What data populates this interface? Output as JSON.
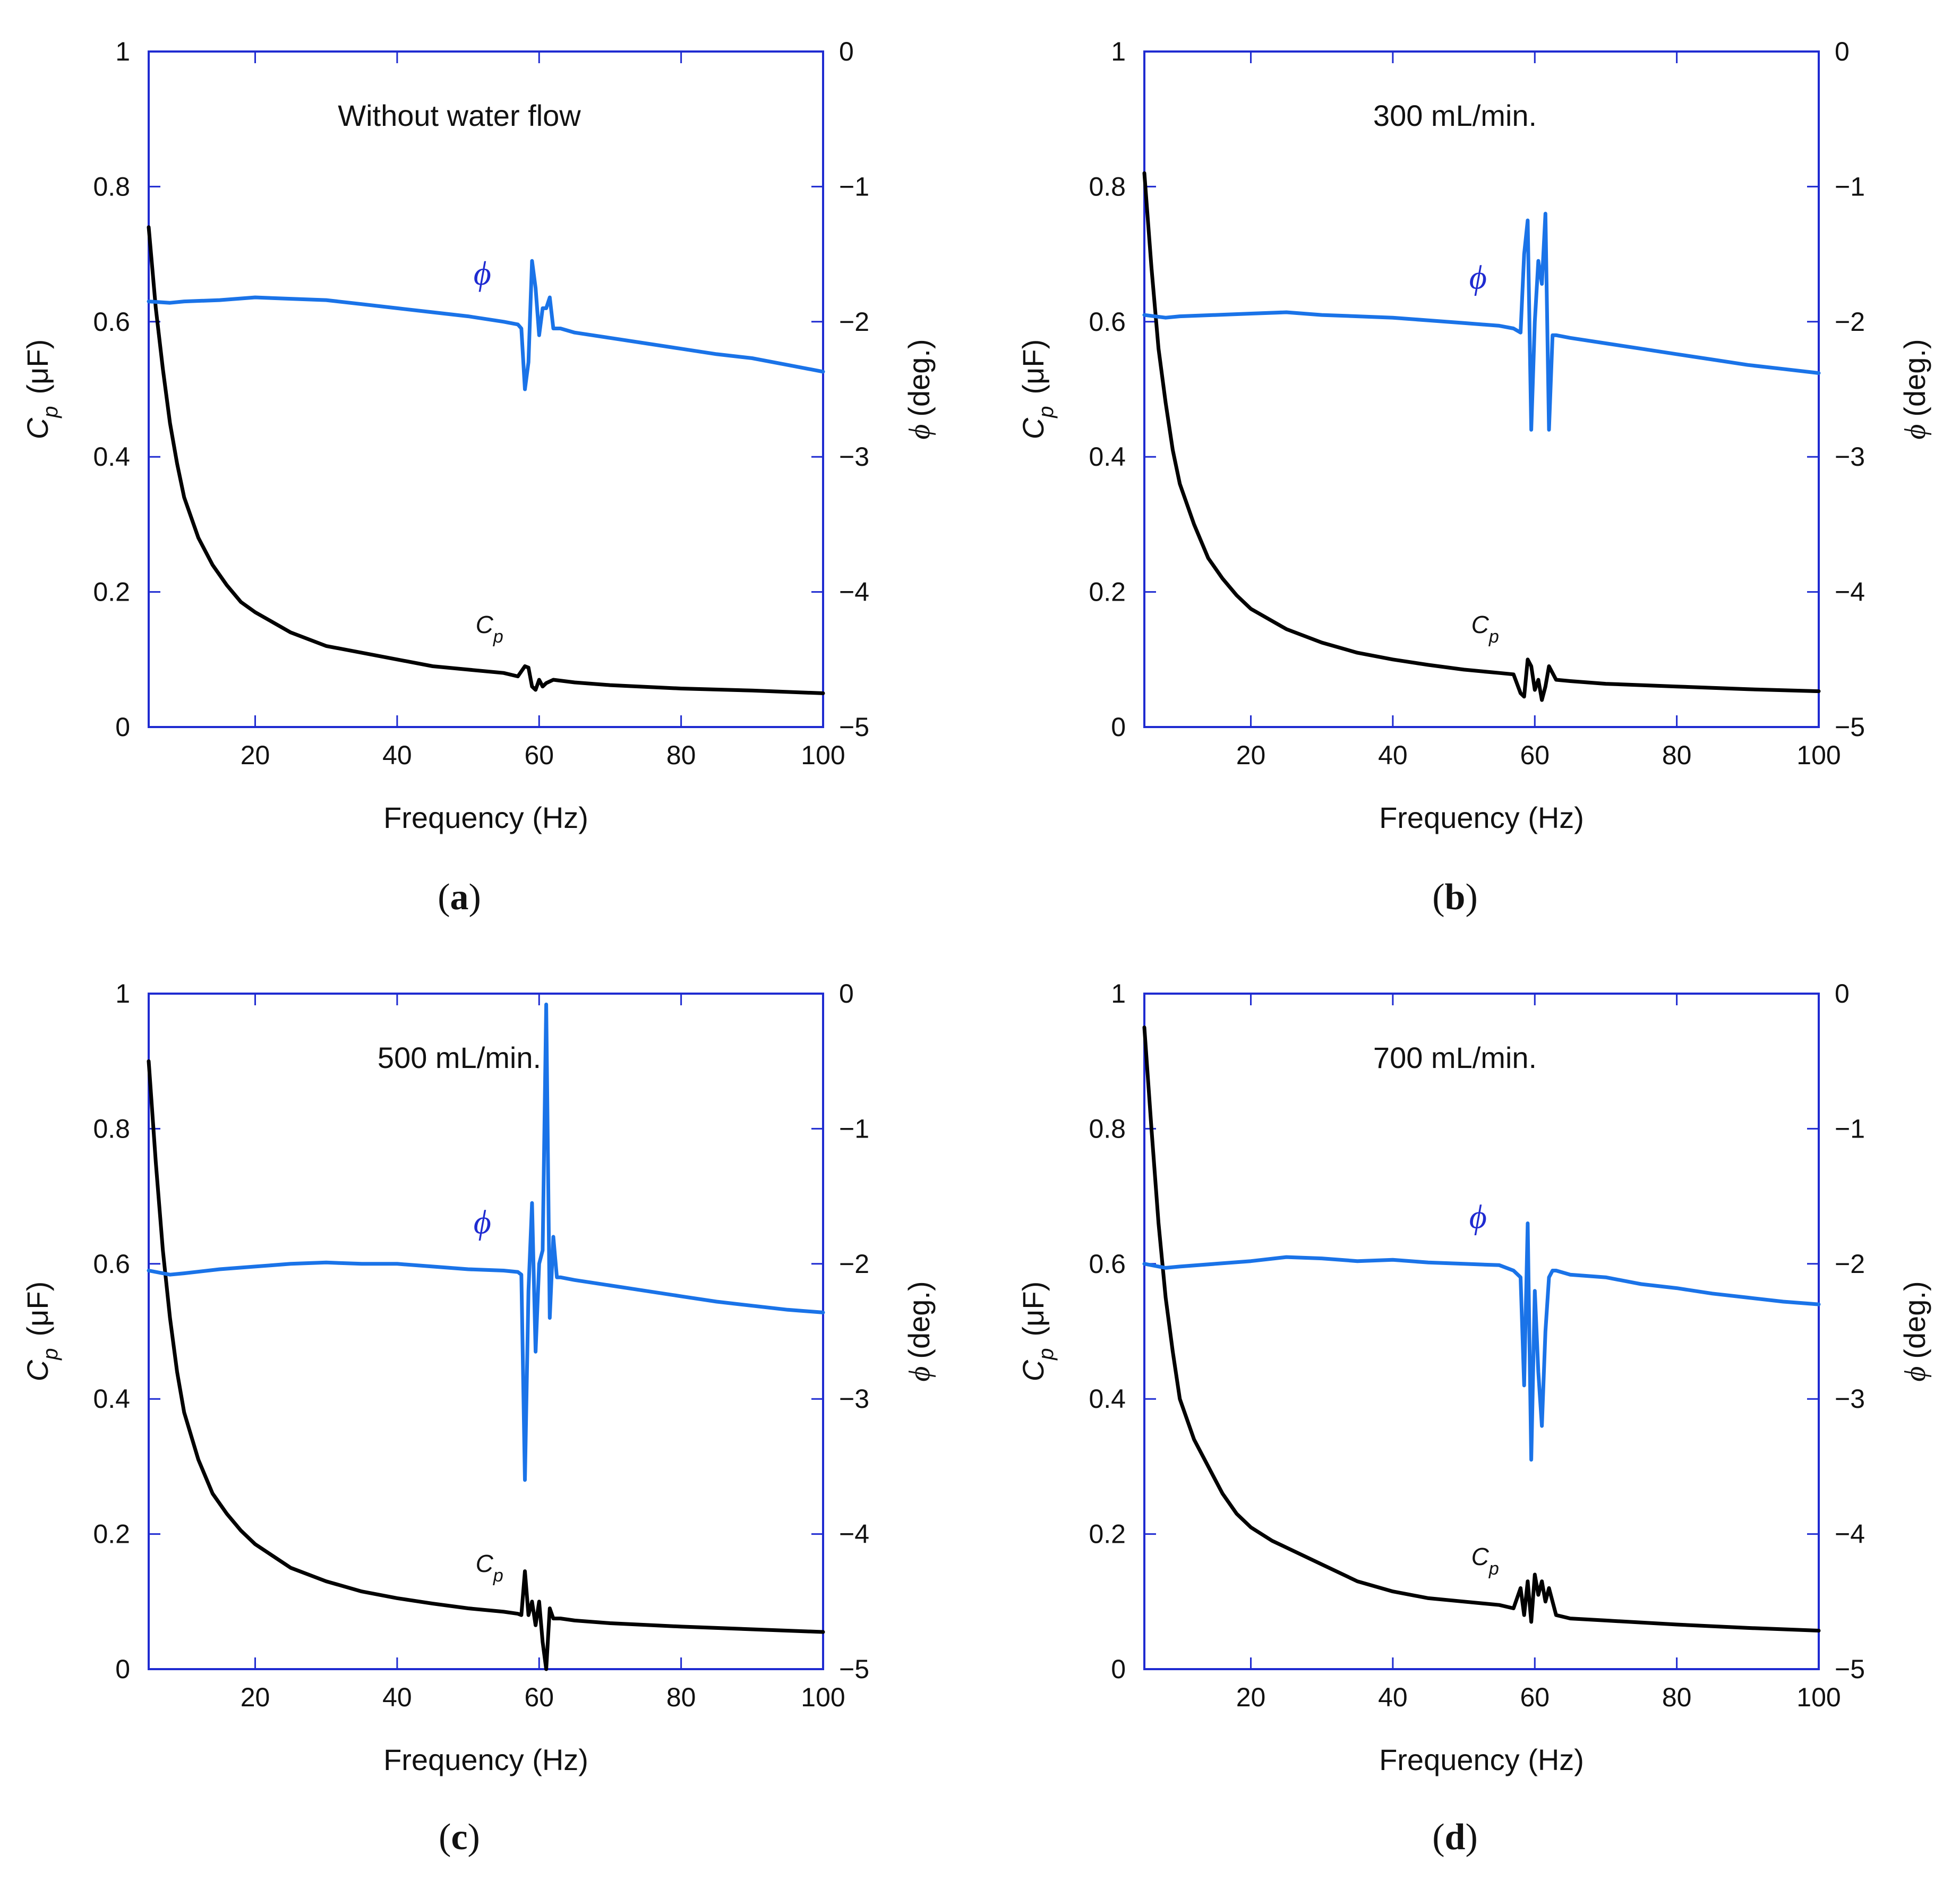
{
  "colors": {
    "axis": "#1f2bd1",
    "cp_line": "#000000",
    "phi_line": "#1a73e8",
    "text": "#111111"
  },
  "chart_data": [
    {
      "type": "line",
      "panel": "a",
      "annotation": "Without water flow",
      "xlabel": "Frequency (Hz)",
      "ylabel_left": {
        "symbol": "C",
        "sub": "p",
        "unit": "(μF)"
      },
      "ylabel_right": {
        "symbol": "ϕ",
        "unit": "(deg.)"
      },
      "xlim": [
        5,
        100
      ],
      "ylim_left": [
        0,
        1
      ],
      "ylim_right": [
        -5,
        0
      ],
      "xticks": [
        20,
        40,
        60,
        80,
        100
      ],
      "xtick_labels": [
        "20",
        "40",
        "60",
        "80",
        "100"
      ],
      "yticks_left": [
        0,
        0.2,
        0.4,
        0.6,
        0.8,
        1
      ],
      "ytick_labels_left": [
        "0",
        "0.2",
        "0.4",
        "0.6",
        "0.8",
        "1"
      ],
      "yticks_right": [
        -5,
        -4,
        -3,
        -2,
        -1,
        0
      ],
      "ytick_labels_right": [
        "−5",
        "−4",
        "−3",
        "−2",
        "−1",
        "0"
      ],
      "series_labels": {
        "cp": {
          "symbol": "C",
          "sub": "p"
        },
        "phi": "ϕ"
      },
      "series": [
        {
          "name": "Cp",
          "axis": "left",
          "x": [
            5,
            6,
            7,
            8,
            9,
            10,
            12,
            14,
            16,
            18,
            20,
            25,
            30,
            35,
            40,
            45,
            50,
            55,
            57,
            58,
            58.5,
            59,
            59.5,
            60,
            60.5,
            61,
            62,
            65,
            70,
            80,
            90,
            100
          ],
          "y": [
            0.74,
            0.62,
            0.53,
            0.45,
            0.39,
            0.34,
            0.28,
            0.24,
            0.21,
            0.185,
            0.17,
            0.14,
            0.12,
            0.11,
            0.1,
            0.09,
            0.085,
            0.08,
            0.075,
            0.09,
            0.088,
            0.06,
            0.055,
            0.07,
            0.06,
            0.065,
            0.07,
            0.066,
            0.062,
            0.057,
            0.054,
            0.05
          ]
        },
        {
          "name": "ϕ",
          "axis": "right",
          "x": [
            5,
            8,
            10,
            15,
            20,
            25,
            30,
            35,
            40,
            45,
            50,
            55,
            57,
            57.5,
            58,
            58.5,
            59,
            59.5,
            60,
            60.5,
            61,
            61.5,
            62,
            63,
            65,
            70,
            75,
            80,
            85,
            90,
            95,
            100
          ],
          "y": [
            -1.85,
            -1.86,
            -1.85,
            -1.84,
            -1.82,
            -1.83,
            -1.84,
            -1.87,
            -1.9,
            -1.93,
            -1.96,
            -2.0,
            -2.02,
            -2.05,
            -2.5,
            -2.3,
            -1.55,
            -1.75,
            -2.1,
            -1.9,
            -1.9,
            -1.82,
            -2.05,
            -2.05,
            -2.08,
            -2.12,
            -2.16,
            -2.2,
            -2.24,
            -2.27,
            -2.32,
            -2.37
          ]
        }
      ]
    },
    {
      "type": "line",
      "panel": "b",
      "annotation": "300 mL/min.",
      "xlabel": "Frequency (Hz)",
      "ylabel_left": {
        "symbol": "C",
        "sub": "p",
        "unit": "(μF)"
      },
      "ylabel_right": {
        "symbol": "ϕ",
        "unit": "(deg.)"
      },
      "xlim": [
        5,
        100
      ],
      "ylim_left": [
        0,
        1
      ],
      "ylim_right": [
        -5,
        0
      ],
      "xticks": [
        20,
        40,
        60,
        80,
        100
      ],
      "xtick_labels": [
        "20",
        "40",
        "60",
        "80",
        "100"
      ],
      "yticks_left": [
        0,
        0.2,
        0.4,
        0.6,
        0.8,
        1
      ],
      "ytick_labels_left": [
        "0",
        "0.2",
        "0.4",
        "0.6",
        "0.8",
        "1"
      ],
      "yticks_right": [
        -5,
        -4,
        -3,
        -2,
        -1,
        0
      ],
      "ytick_labels_right": [
        "−5",
        "−4",
        "−3",
        "−2",
        "−1",
        "0"
      ],
      "series_labels": {
        "cp": {
          "symbol": "C",
          "sub": "p"
        },
        "phi": "ϕ"
      },
      "series": [
        {
          "name": "Cp",
          "axis": "left",
          "x": [
            5,
            6,
            7,
            8,
            9,
            10,
            12,
            14,
            16,
            18,
            20,
            25,
            30,
            35,
            40,
            45,
            50,
            55,
            57,
            58,
            58.5,
            59,
            59.5,
            60,
            60.5,
            61,
            61.5,
            62,
            63,
            65,
            70,
            80,
            90,
            100
          ],
          "y": [
            0.82,
            0.68,
            0.56,
            0.48,
            0.41,
            0.36,
            0.3,
            0.25,
            0.22,
            0.195,
            0.175,
            0.145,
            0.125,
            0.11,
            0.1,
            0.092,
            0.085,
            0.08,
            0.078,
            0.05,
            0.045,
            0.1,
            0.09,
            0.055,
            0.07,
            0.04,
            0.06,
            0.09,
            0.07,
            0.068,
            0.064,
            0.06,
            0.056,
            0.053
          ]
        },
        {
          "name": "ϕ",
          "axis": "right",
          "x": [
            5,
            8,
            10,
            15,
            20,
            25,
            30,
            35,
            40,
            45,
            50,
            55,
            57,
            58,
            58.5,
            59,
            59.5,
            60,
            60.5,
            61,
            61.5,
            62,
            62.5,
            63,
            65,
            70,
            75,
            80,
            85,
            90,
            95,
            100
          ],
          "y": [
            -1.95,
            -1.97,
            -1.96,
            -1.95,
            -1.94,
            -1.93,
            -1.95,
            -1.96,
            -1.97,
            -1.99,
            -2.01,
            -2.03,
            -2.05,
            -2.08,
            -1.5,
            -1.25,
            -2.8,
            -2.0,
            -1.55,
            -1.72,
            -1.2,
            -2.8,
            -2.1,
            -2.1,
            -2.12,
            -2.16,
            -2.2,
            -2.24,
            -2.28,
            -2.32,
            -2.35,
            -2.38
          ]
        }
      ]
    },
    {
      "type": "line",
      "panel": "c",
      "annotation": "500 mL/min.",
      "xlabel": "Frequency (Hz)",
      "ylabel_left": {
        "symbol": "C",
        "sub": "p",
        "unit": "(μF)"
      },
      "ylabel_right": {
        "symbol": "ϕ",
        "unit": "(deg.)"
      },
      "xlim": [
        5,
        100
      ],
      "ylim_left": [
        0,
        1
      ],
      "ylim_right": [
        -5,
        0
      ],
      "xticks": [
        20,
        40,
        60,
        80,
        100
      ],
      "xtick_labels": [
        "20",
        "40",
        "60",
        "80",
        "100"
      ],
      "yticks_left": [
        0,
        0.2,
        0.4,
        0.6,
        0.8,
        1
      ],
      "ytick_labels_left": [
        "0",
        "0.2",
        "0.4",
        "0.6",
        "0.8",
        "1"
      ],
      "yticks_right": [
        -5,
        -4,
        -3,
        -2,
        -1,
        0
      ],
      "ytick_labels_right": [
        "−5",
        "−4",
        "−3",
        "−2",
        "−1",
        "0"
      ],
      "series_labels": {
        "cp": {
          "symbol": "C",
          "sub": "p"
        },
        "phi": "ϕ"
      },
      "series": [
        {
          "name": "Cp",
          "axis": "left",
          "x": [
            5,
            6,
            7,
            8,
            9,
            10,
            12,
            14,
            16,
            18,
            20,
            25,
            30,
            35,
            40,
            45,
            50,
            55,
            57,
            57.5,
            58,
            58.5,
            59,
            59.5,
            60,
            60.5,
            61,
            61.5,
            62,
            63,
            65,
            70,
            80,
            90,
            100
          ],
          "y": [
            0.9,
            0.75,
            0.62,
            0.52,
            0.44,
            0.38,
            0.31,
            0.26,
            0.23,
            0.205,
            0.185,
            0.15,
            0.13,
            0.115,
            0.105,
            0.097,
            0.09,
            0.085,
            0.082,
            0.08,
            0.145,
            0.08,
            0.1,
            0.065,
            0.1,
            0.04,
            0.0,
            0.09,
            0.075,
            0.075,
            0.072,
            0.068,
            0.063,
            0.059,
            0.055
          ]
        },
        {
          "name": "ϕ",
          "axis": "right",
          "x": [
            5,
            8,
            10,
            15,
            20,
            25,
            30,
            35,
            40,
            45,
            50,
            55,
            57,
            57.5,
            58,
            58.5,
            59,
            59.5,
            60,
            60.5,
            61,
            61.5,
            62,
            62.5,
            63,
            65,
            70,
            75,
            80,
            85,
            90,
            95,
            100
          ],
          "y": [
            -2.05,
            -2.08,
            -2.07,
            -2.04,
            -2.02,
            -2.0,
            -1.99,
            -2.0,
            -2.0,
            -2.02,
            -2.04,
            -2.05,
            -2.06,
            -2.08,
            -3.6,
            -2.2,
            -1.55,
            -2.65,
            -2.0,
            -1.9,
            -0.08,
            -2.4,
            -1.8,
            -2.1,
            -2.1,
            -2.12,
            -2.16,
            -2.2,
            -2.24,
            -2.28,
            -2.31,
            -2.34,
            -2.36
          ]
        }
      ]
    },
    {
      "type": "line",
      "panel": "d",
      "annotation": "700 mL/min.",
      "xlabel": "Frequency (Hz)",
      "ylabel_left": {
        "symbol": "C",
        "sub": "p",
        "unit": "(μF)"
      },
      "ylabel_right": {
        "symbol": "ϕ",
        "unit": "(deg.)"
      },
      "xlim": [
        5,
        100
      ],
      "ylim_left": [
        0,
        1
      ],
      "ylim_right": [
        -5,
        0
      ],
      "xticks": [
        20,
        40,
        60,
        80,
        100
      ],
      "xtick_labels": [
        "20",
        "40",
        "60",
        "80",
        "100"
      ],
      "yticks_left": [
        0,
        0.2,
        0.4,
        0.6,
        0.8,
        1
      ],
      "ytick_labels_left": [
        "0",
        "0.2",
        "0.4",
        "0.6",
        "0.8",
        "1"
      ],
      "yticks_right": [
        -5,
        -4,
        -3,
        -2,
        -1,
        0
      ],
      "ytick_labels_right": [
        "−5",
        "−4",
        "−3",
        "−2",
        "−1",
        "0"
      ],
      "series_labels": {
        "cp": {
          "symbol": "C",
          "sub": "p"
        },
        "phi": "ϕ"
      },
      "series": [
        {
          "name": "Cp",
          "axis": "left",
          "x": [
            5,
            6,
            7,
            8,
            9,
            10,
            12,
            14,
            16,
            18,
            20,
            23,
            25,
            30,
            35,
            40,
            45,
            50,
            55,
            57,
            58,
            58.5,
            59,
            59.5,
            60,
            60.5,
            61,
            61.5,
            62,
            63,
            65,
            70,
            80,
            90,
            100
          ],
          "y": [
            0.95,
            0.8,
            0.66,
            0.55,
            0.47,
            0.4,
            0.34,
            0.3,
            0.26,
            0.23,
            0.21,
            0.19,
            0.18,
            0.155,
            0.13,
            0.115,
            0.105,
            0.1,
            0.095,
            0.09,
            0.12,
            0.08,
            0.13,
            0.07,
            0.14,
            0.11,
            0.13,
            0.1,
            0.12,
            0.08,
            0.075,
            0.072,
            0.066,
            0.061,
            0.057
          ]
        },
        {
          "name": "ϕ",
          "axis": "right",
          "x": [
            5,
            8,
            10,
            15,
            20,
            25,
            30,
            35,
            40,
            45,
            50,
            55,
            57,
            58,
            58.5,
            59,
            59.5,
            60,
            60.5,
            61,
            61.5,
            62,
            62.5,
            63,
            65,
            70,
            75,
            80,
            85,
            90,
            95,
            100
          ],
          "y": [
            -2.0,
            -2.03,
            -2.02,
            -2.0,
            -1.98,
            -1.95,
            -1.96,
            -1.98,
            -1.97,
            -1.99,
            -2.0,
            -2.01,
            -2.05,
            -2.1,
            -2.9,
            -1.7,
            -3.45,
            -2.2,
            -2.8,
            -3.2,
            -2.5,
            -2.1,
            -2.05,
            -2.05,
            -2.08,
            -2.1,
            -2.15,
            -2.18,
            -2.22,
            -2.25,
            -2.28,
            -2.3
          ]
        }
      ]
    }
  ]
}
